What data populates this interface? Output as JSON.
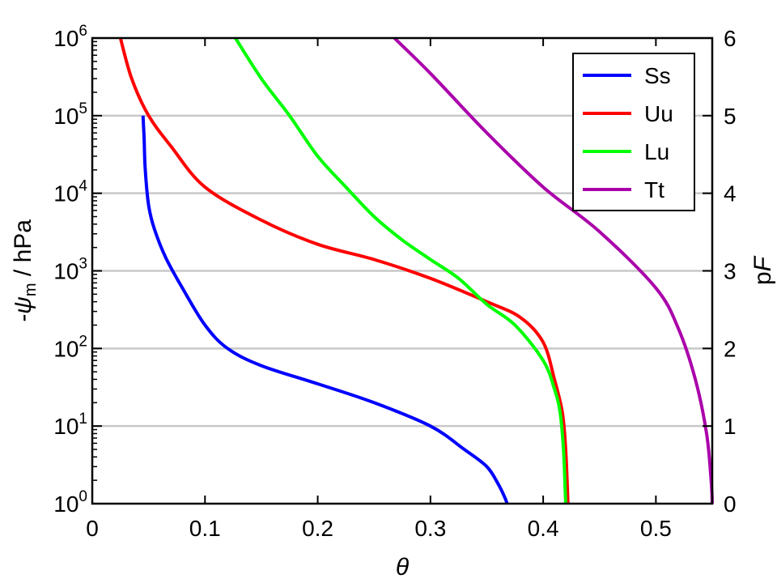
{
  "chart_data": {
    "type": "line",
    "xlabel": "θ",
    "ylabel_left": {
      "prefix": "-ψ",
      "subscript": "m",
      "suffix": " / hPa"
    },
    "ylabel_right": {
      "prefix": "p",
      "italic": "F"
    },
    "xlim": [
      0,
      0.55
    ],
    "ylim": [
      1,
      1000000
    ],
    "y_scale": "log",
    "y2lim": [
      0,
      6
    ],
    "grid": "horizontal",
    "legend_position": "top-right",
    "x_ticks": [
      "0",
      "0.1",
      "0.2",
      "0.3",
      "0.4",
      "0.5"
    ],
    "x_tick_values": [
      0,
      0.1,
      0.2,
      0.3,
      0.4,
      0.5
    ],
    "y_ticks": [
      {
        "base": "10",
        "exp": "0"
      },
      {
        "base": "10",
        "exp": "1"
      },
      {
        "base": "10",
        "exp": "2"
      },
      {
        "base": "10",
        "exp": "3"
      },
      {
        "base": "10",
        "exp": "4"
      },
      {
        "base": "10",
        "exp": "5"
      },
      {
        "base": "10",
        "exp": "6"
      }
    ],
    "y2_ticks": [
      "0",
      "1",
      "2",
      "3",
      "4",
      "5",
      "6"
    ],
    "series": [
      {
        "name": "Ss",
        "color": "#0000ff",
        "points": [
          [
            0.045,
            100000
          ],
          [
            0.046,
            50000
          ],
          [
            0.047,
            20000
          ],
          [
            0.05,
            7000
          ],
          [
            0.055,
            3500
          ],
          [
            0.065,
            1500
          ],
          [
            0.08,
            600
          ],
          [
            0.1,
            200
          ],
          [
            0.12,
            100
          ],
          [
            0.15,
            60
          ],
          [
            0.2,
            35
          ],
          [
            0.25,
            20
          ],
          [
            0.3,
            10
          ],
          [
            0.33,
            5
          ],
          [
            0.35,
            3
          ],
          [
            0.36,
            1.8
          ],
          [
            0.366,
            1.2
          ],
          [
            0.368,
            1
          ]
        ]
      },
      {
        "name": "Uu",
        "color": "#ff0000",
        "points": [
          [
            0.025,
            1000000
          ],
          [
            0.035,
            300000
          ],
          [
            0.05,
            100000
          ],
          [
            0.07,
            40000
          ],
          [
            0.1,
            12000
          ],
          [
            0.15,
            4500
          ],
          [
            0.2,
            2200
          ],
          [
            0.25,
            1400
          ],
          [
            0.3,
            800
          ],
          [
            0.35,
            400
          ],
          [
            0.38,
            250
          ],
          [
            0.4,
            120
          ],
          [
            0.41,
            40
          ],
          [
            0.417,
            15
          ],
          [
            0.42,
            5
          ],
          [
            0.422,
            1
          ]
        ]
      },
      {
        "name": "Lu",
        "color": "#00ff00",
        "points": [
          [
            0.127,
            1000000
          ],
          [
            0.15,
            300000
          ],
          [
            0.175,
            100000
          ],
          [
            0.2,
            30000
          ],
          [
            0.225,
            12000
          ],
          [
            0.25,
            5000
          ],
          [
            0.275,
            2500
          ],
          [
            0.3,
            1400
          ],
          [
            0.325,
            800
          ],
          [
            0.35,
            370
          ],
          [
            0.375,
            200
          ],
          [
            0.4,
            70
          ],
          [
            0.41,
            30
          ],
          [
            0.415,
            15
          ],
          [
            0.418,
            5
          ],
          [
            0.42,
            1
          ]
        ]
      },
      {
        "name": "Tt",
        "color": "#aa00aa",
        "points": [
          [
            0.268,
            1000000
          ],
          [
            0.3,
            350000
          ],
          [
            0.35,
            60000
          ],
          [
            0.4,
            12000
          ],
          [
            0.45,
            3200
          ],
          [
            0.5,
            600
          ],
          [
            0.52,
            180
          ],
          [
            0.535,
            40
          ],
          [
            0.545,
            8
          ],
          [
            0.549,
            2
          ],
          [
            0.55,
            1
          ]
        ]
      }
    ]
  }
}
